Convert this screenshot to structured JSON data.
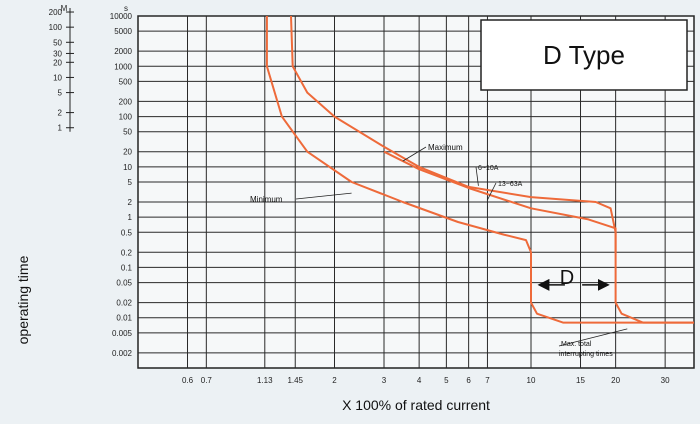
{
  "chart_data": {
    "type": "line",
    "title": "D Type",
    "xlabel": "X 100% of rated current",
    "ylabel": "operating time",
    "x_scale": "log",
    "y_scale": "log",
    "xlim": [
      0.4,
      38
    ],
    "ylim": [
      0.001,
      10000
    ],
    "x_tick_labels": [
      {
        "x": 0.6,
        "label": "0.6"
      },
      {
        "x": 0.7,
        "label": "0.7"
      },
      {
        "x": 1.13,
        "label": "1.13"
      },
      {
        "x": 1.45,
        "label": "1.45"
      },
      {
        "x": 2,
        "label": "2"
      },
      {
        "x": 3,
        "label": "3"
      },
      {
        "x": 4,
        "label": "4"
      },
      {
        "x": 5,
        "label": "5"
      },
      {
        "x": 6,
        "label": "6"
      },
      {
        "x": 7,
        "label": "7"
      },
      {
        "x": 10,
        "label": "10"
      },
      {
        "x": 15,
        "label": "15"
      },
      {
        "x": 20,
        "label": "20"
      },
      {
        "x": 30,
        "label": "30"
      }
    ],
    "y_tick_labels_s": [
      "10000",
      "5000",
      "2000",
      "1000",
      "500",
      "200",
      "100",
      "50",
      "20",
      "10",
      "5",
      "2",
      "1",
      "0.5",
      "0.2",
      "0.1",
      "0.05",
      "0.02",
      "0.01",
      "0.005",
      "0.002"
    ],
    "y_tick_values_s": [
      10000,
      5000,
      2000,
      1000,
      500,
      200,
      100,
      50,
      20,
      10,
      5,
      2,
      1,
      0.5,
      0.2,
      0.1,
      0.05,
      0.02,
      0.01,
      0.005,
      0.002
    ],
    "y_unit_s": "s",
    "y_tick_labels_m": [
      "200",
      "100",
      "50",
      "30",
      "20",
      "10",
      "5",
      "2",
      "1"
    ],
    "y_tick_values_m": [
      200,
      100,
      50,
      30,
      20,
      10,
      5,
      2,
      1
    ],
    "y_unit_m": "M",
    "grid": true,
    "series": [
      {
        "values": [
          [
            1.15,
            10000
          ],
          [
            1.15,
            1000
          ],
          [
            1.3,
            100
          ],
          [
            1.6,
            20
          ],
          [
            2.3,
            5
          ],
          [
            3.5,
            2
          ],
          [
            5.5,
            0.8
          ],
          [
            8,
            0.45
          ],
          [
            9.6,
            0.35
          ],
          [
            10,
            0.2
          ],
          [
            10,
            0.02
          ],
          [
            10.5,
            0.012
          ],
          [
            13,
            0.008
          ],
          [
            38,
            0.008
          ]
        ]
      },
      {
        "values": [
          [
            1.4,
            10000
          ],
          [
            1.42,
            1000
          ],
          [
            1.6,
            300
          ],
          [
            2,
            100
          ],
          [
            3,
            25
          ],
          [
            4,
            10
          ],
          [
            6,
            4
          ],
          [
            10,
            2.5
          ],
          [
            17,
            2
          ],
          [
            19.2,
            1.5
          ],
          [
            20,
            0.5
          ],
          [
            20,
            0.02
          ],
          [
            21,
            0.012
          ],
          [
            25,
            0.008
          ],
          [
            38,
            0.008
          ]
        ]
      },
      {
        "values": [
          [
            3,
            20
          ],
          [
            4,
            9
          ],
          [
            6,
            3.8
          ],
          [
            10,
            1.5
          ],
          [
            16,
            0.9
          ],
          [
            20,
            0.6
          ],
          [
            20,
            0.2
          ]
        ]
      }
    ],
    "annotations": [
      {
        "text": "Minimum",
        "target": [
          2.3,
          3
        ]
      },
      {
        "text": "Maximum",
        "target": [
          3.5,
          13
        ]
      },
      {
        "text": "6~10A",
        "target": [
          6.5,
          4.2
        ]
      },
      {
        "text": "13~63A",
        "target": [
          7,
          2.2
        ]
      },
      {
        "text": "Max. total",
        "target": [
          22,
          0.006
        ]
      },
      {
        "text": "interrupting times",
        "target": null
      },
      {
        "text": "D",
        "target": [
          14,
          0.06
        ]
      }
    ]
  }
}
